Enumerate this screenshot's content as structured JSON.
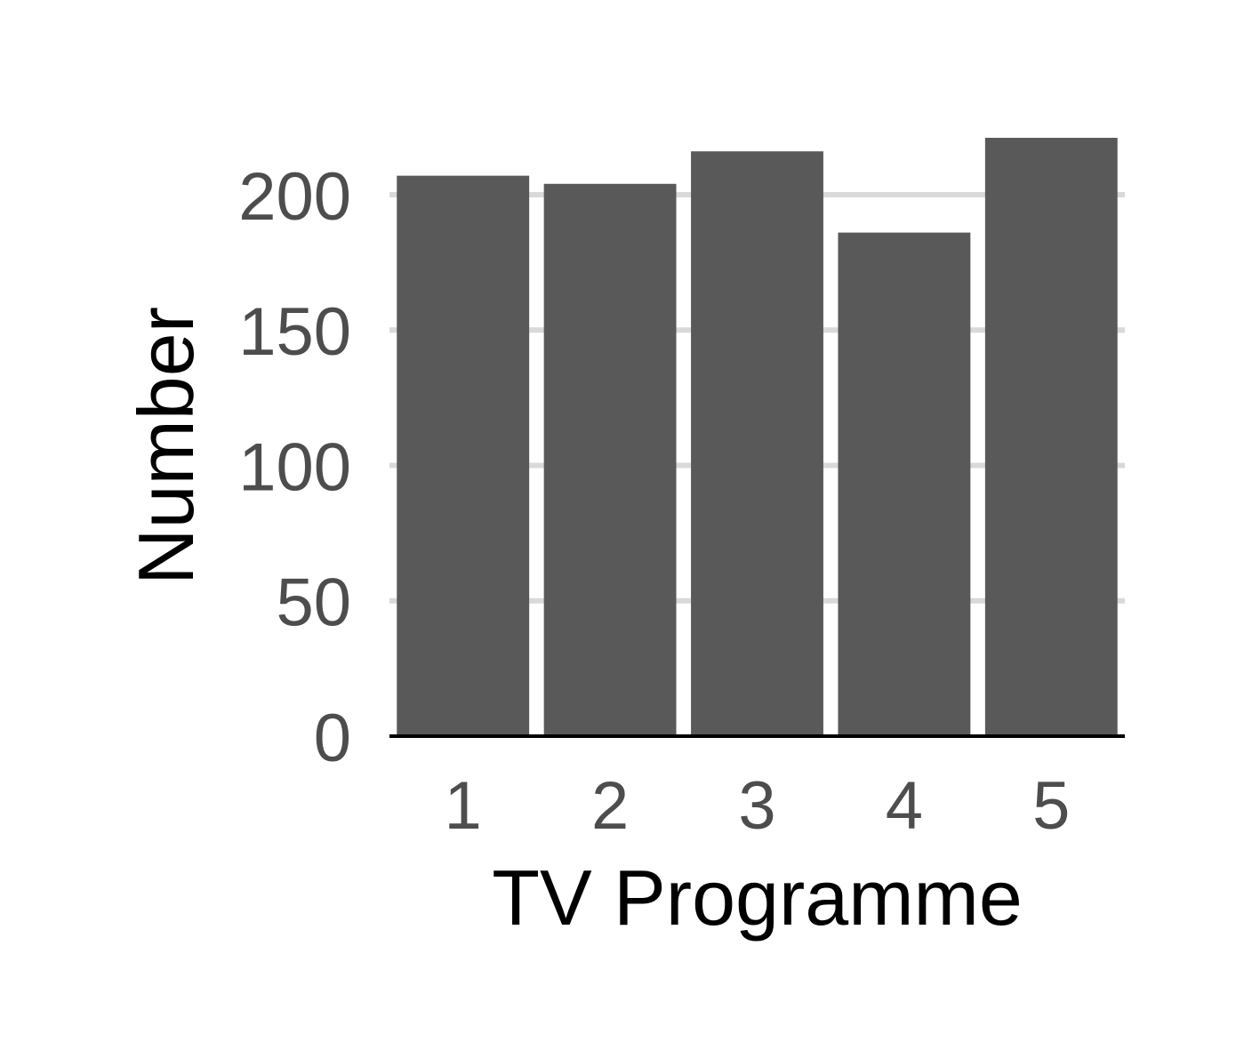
{
  "chart_data": {
    "type": "bar",
    "title": "",
    "xlabel": "TV Programme",
    "ylabel": "Number",
    "categories": [
      "1",
      "2",
      "3",
      "4",
      "5"
    ],
    "values": [
      207,
      204,
      216,
      186,
      221
    ],
    "ylim": [
      0,
      221
    ],
    "yticks": [
      0,
      50,
      100,
      150,
      200
    ],
    "ytick_labels": [
      "0",
      "50",
      "100",
      "150",
      "200"
    ],
    "grid": "horizontal major lines",
    "legend": "none",
    "colors": {
      "bar": "#595959",
      "grid": "#d9d9d9",
      "baseline": "#000000",
      "tick_text": "#4d4d4d",
      "title_text": "#000000"
    }
  }
}
